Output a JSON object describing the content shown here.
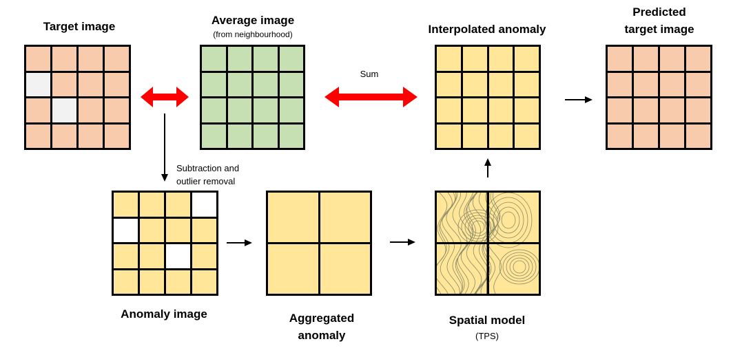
{
  "labels": {
    "target": "Target image",
    "average": "Average image",
    "average_sub": "(from neighbourhood)",
    "interpolated": "Interpolated anomaly",
    "predicted_line1": "Predicted",
    "predicted_line2": "target image",
    "anomaly": "Anomaly image",
    "aggregated_line1": "Aggregated",
    "aggregated_line2": "anomaly",
    "spatial": "Spatial model",
    "spatial_sub": "(TPS)",
    "sum": "Sum",
    "subtraction_line1": "Subtraction and",
    "subtraction_line2": "outlier removal"
  },
  "colors": {
    "target_fill": "#f8cbad",
    "missing_fill": "#f2f2f2",
    "average_fill": "#c6e0b4",
    "anomaly_fill": "#ffe699",
    "outlier_fill": "#ffffff",
    "contour": "#8a8a6a",
    "double_arrow": "#ff0000",
    "arrow": "#000000"
  },
  "grids": {
    "target_missing_cells": [
      4,
      9
    ],
    "anomaly_removed_cells": [
      3,
      4,
      10
    ]
  }
}
